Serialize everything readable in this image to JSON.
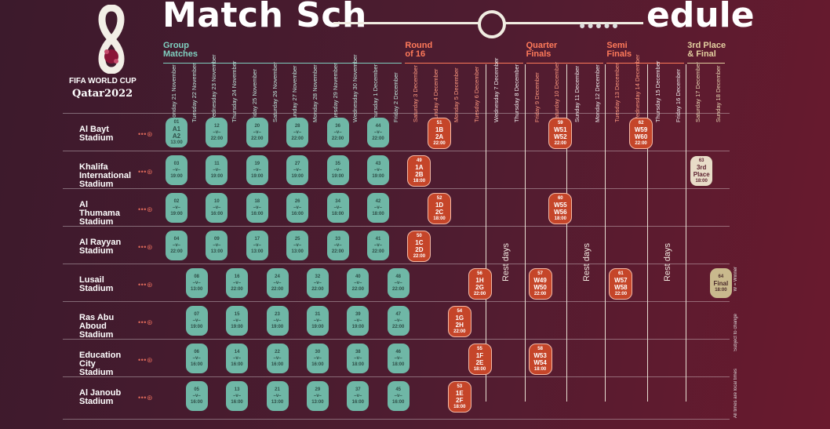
{
  "title": {
    "main": "Match Sch",
    "end": "edule",
    "dots": "●●●●●"
  },
  "logo": {
    "line1": "FIFA WORLD CUP",
    "line2": "Qatar2022"
  },
  "phases": [
    {
      "label": "Group\nMatches",
      "color": "#7fd0c0"
    },
    {
      "label": "Round\nof 16",
      "color": "#ff7a5a"
    },
    {
      "label": "Quarter\nFinals",
      "color": "#ff7a5a"
    },
    {
      "label": "Semi\nFinals",
      "color": "#ff7a5a"
    },
    {
      "label": "3rd Place\n& Final",
      "color": "#e3cfa0"
    }
  ],
  "days": [
    "Monday 21 November",
    "Tuesday 22 November",
    "Wednesday 23 November",
    "Thursday 24 November",
    "Friday 25 November",
    "Saturday 26 November",
    "Sunday 27 November",
    "Monday 28 November",
    "Tuesday 29 November",
    "Wednesday 30 November",
    "Thursday 1 December",
    "Friday 2 December",
    "Saturday 3 December",
    "Sunday 4 December",
    "Monday 5 December",
    "Tuesday 6 December",
    "Wednesday 7 December",
    "Thursday 8 December",
    "Friday 9 December",
    "Saturday 10 December",
    "Sunday 11 December",
    "Monday 12 December",
    "Tuesday 13 December",
    "Wednesday 14 December",
    "Thursday 15 December",
    "Friday 16 December",
    "Saturday 17 December",
    "Sunday 18 December"
  ],
  "stadiums": [
    "Al Bayt\nStadium",
    "Khalifa\nInternational\nStadium",
    "Al\nThumama\nStadium",
    "Al Rayyan\nStadium",
    "Lusail\nStadium",
    "Ras Abu\nAboud\nStadium",
    "Education\nCity\nStadium",
    "Al Janoub\nStadium"
  ],
  "connector": "• • • ⊛",
  "rest_label": "Rest days",
  "side_notes": [
    "W = Winner",
    "Subject to change",
    "All times are local times"
  ],
  "matches": [
    {
      "row": 0,
      "col": 0,
      "n": "01",
      "a": "A1",
      "b": "A2",
      "t": "13:00",
      "type": "g"
    },
    {
      "row": 0,
      "col": 2,
      "n": "12",
      "a": "",
      "b": "",
      "t": "22:00",
      "type": "g"
    },
    {
      "row": 0,
      "col": 4,
      "n": "20",
      "a": "",
      "b": "",
      "t": "22:00",
      "type": "g"
    },
    {
      "row": 0,
      "col": 6,
      "n": "28",
      "a": "",
      "b": "",
      "t": "22:00",
      "type": "g"
    },
    {
      "row": 0,
      "col": 8,
      "n": "36",
      "a": "",
      "b": "",
      "t": "22:00",
      "type": "g"
    },
    {
      "row": 0,
      "col": 10,
      "n": "44",
      "a": "",
      "b": "",
      "t": "22:00",
      "type": "g"
    },
    {
      "row": 0,
      "col": 13,
      "n": "51",
      "a": "1B",
      "b": "2A",
      "t": "22:00",
      "type": "k"
    },
    {
      "row": 0,
      "col": 19,
      "n": "59",
      "a": "W51",
      "b": "W52",
      "t": "22:00",
      "type": "k"
    },
    {
      "row": 0,
      "col": 23,
      "n": "62",
      "a": "W59",
      "b": "W60",
      "t": "22:00",
      "type": "k"
    },
    {
      "row": 1,
      "col": 0,
      "n": "03",
      "a": "",
      "b": "",
      "t": "19:00",
      "type": "g"
    },
    {
      "row": 1,
      "col": 2,
      "n": "11",
      "a": "",
      "b": "",
      "t": "19:00",
      "type": "g"
    },
    {
      "row": 1,
      "col": 4,
      "n": "19",
      "a": "",
      "b": "",
      "t": "19:00",
      "type": "g"
    },
    {
      "row": 1,
      "col": 6,
      "n": "27",
      "a": "",
      "b": "",
      "t": "19:00",
      "type": "g"
    },
    {
      "row": 1,
      "col": 8,
      "n": "35",
      "a": "",
      "b": "",
      "t": "19:00",
      "type": "g"
    },
    {
      "row": 1,
      "col": 10,
      "n": "43",
      "a": "",
      "b": "",
      "t": "19:00",
      "type": "g"
    },
    {
      "row": 1,
      "col": 12,
      "n": "49",
      "a": "1A",
      "b": "2B",
      "t": "18:00",
      "type": "k"
    },
    {
      "row": 1,
      "col": 26,
      "n": "63",
      "a": "3rd",
      "b": "Place",
      "t": "18:00",
      "type": "t"
    },
    {
      "row": 2,
      "col": 0,
      "n": "02",
      "a": "",
      "b": "",
      "t": "19:00",
      "type": "g"
    },
    {
      "row": 2,
      "col": 2,
      "n": "10",
      "a": "",
      "b": "",
      "t": "16:00",
      "type": "g"
    },
    {
      "row": 2,
      "col": 4,
      "n": "18",
      "a": "",
      "b": "",
      "t": "16:00",
      "type": "g"
    },
    {
      "row": 2,
      "col": 6,
      "n": "26",
      "a": "",
      "b": "",
      "t": "16:00",
      "type": "g"
    },
    {
      "row": 2,
      "col": 8,
      "n": "34",
      "a": "",
      "b": "",
      "t": "18:00",
      "type": "g"
    },
    {
      "row": 2,
      "col": 10,
      "n": "42",
      "a": "",
      "b": "",
      "t": "18:00",
      "type": "g"
    },
    {
      "row": 2,
      "col": 13,
      "n": "52",
      "a": "1D",
      "b": "2C",
      "t": "18:00",
      "type": "k"
    },
    {
      "row": 2,
      "col": 19,
      "n": "60",
      "a": "W55",
      "b": "W56",
      "t": "18:00",
      "type": "k"
    },
    {
      "row": 3,
      "col": 0,
      "n": "04",
      "a": "",
      "b": "",
      "t": "22:00",
      "type": "g"
    },
    {
      "row": 3,
      "col": 2,
      "n": "09",
      "a": "",
      "b": "",
      "t": "13:00",
      "type": "g"
    },
    {
      "row": 3,
      "col": 4,
      "n": "17",
      "a": "",
      "b": "",
      "t": "13:00",
      "type": "g"
    },
    {
      "row": 3,
      "col": 6,
      "n": "25",
      "a": "",
      "b": "",
      "t": "13:00",
      "type": "g"
    },
    {
      "row": 3,
      "col": 8,
      "n": "33",
      "a": "",
      "b": "",
      "t": "22:00",
      "type": "g"
    },
    {
      "row": 3,
      "col": 10,
      "n": "41",
      "a": "",
      "b": "",
      "t": "22:00",
      "type": "g"
    },
    {
      "row": 3,
      "col": 12,
      "n": "50",
      "a": "1C",
      "b": "2D",
      "t": "22:00",
      "type": "k"
    },
    {
      "row": 4,
      "col": 1,
      "n": "08",
      "a": "",
      "b": "",
      "t": "13:00",
      "type": "g"
    },
    {
      "row": 4,
      "col": 3,
      "n": "16",
      "a": "",
      "b": "",
      "t": "22:00",
      "type": "g"
    },
    {
      "row": 4,
      "col": 5,
      "n": "24",
      "a": "",
      "b": "",
      "t": "22:00",
      "type": "g"
    },
    {
      "row": 4,
      "col": 7,
      "n": "32",
      "a": "",
      "b": "",
      "t": "22:00",
      "type": "g"
    },
    {
      "row": 4,
      "col": 9,
      "n": "40",
      "a": "",
      "b": "",
      "t": "22:00",
      "type": "g"
    },
    {
      "row": 4,
      "col": 11,
      "n": "48",
      "a": "",
      "b": "",
      "t": "22:00",
      "type": "g"
    },
    {
      "row": 4,
      "col": 15,
      "n": "56",
      "a": "1H",
      "b": "2G",
      "t": "22:00",
      "type": "k"
    },
    {
      "row": 4,
      "col": 18,
      "n": "57",
      "a": "W49",
      "b": "W50",
      "t": "22:00",
      "type": "k"
    },
    {
      "row": 4,
      "col": 22,
      "n": "61",
      "a": "W57",
      "b": "W58",
      "t": "22:00",
      "type": "k"
    },
    {
      "row": 4,
      "col": 27,
      "n": "64",
      "a": "Final",
      "b": "",
      "t": "18:00",
      "type": "f"
    },
    {
      "row": 5,
      "col": 1,
      "n": "07",
      "a": "",
      "b": "",
      "t": "19:00",
      "type": "g"
    },
    {
      "row": 5,
      "col": 3,
      "n": "15",
      "a": "",
      "b": "",
      "t": "19:00",
      "type": "g"
    },
    {
      "row": 5,
      "col": 5,
      "n": "23",
      "a": "",
      "b": "",
      "t": "19:00",
      "type": "g"
    },
    {
      "row": 5,
      "col": 7,
      "n": "31",
      "a": "",
      "b": "",
      "t": "19:00",
      "type": "g"
    },
    {
      "row": 5,
      "col": 9,
      "n": "39",
      "a": "",
      "b": "",
      "t": "19:00",
      "type": "g"
    },
    {
      "row": 5,
      "col": 11,
      "n": "47",
      "a": "",
      "b": "",
      "t": "22:00",
      "type": "g"
    },
    {
      "row": 5,
      "col": 14,
      "n": "54",
      "a": "1G",
      "b": "2H",
      "t": "22:00",
      "type": "k"
    },
    {
      "row": 6,
      "col": 1,
      "n": "06",
      "a": "",
      "b": "",
      "t": "16:00",
      "type": "g"
    },
    {
      "row": 6,
      "col": 3,
      "n": "14",
      "a": "",
      "b": "",
      "t": "16:00",
      "type": "g"
    },
    {
      "row": 6,
      "col": 5,
      "n": "22",
      "a": "",
      "b": "",
      "t": "16:00",
      "type": "g"
    },
    {
      "row": 6,
      "col": 7,
      "n": "30",
      "a": "",
      "b": "",
      "t": "16:00",
      "type": "g"
    },
    {
      "row": 6,
      "col": 9,
      "n": "38",
      "a": "",
      "b": "",
      "t": "18:00",
      "type": "g"
    },
    {
      "row": 6,
      "col": 11,
      "n": "46",
      "a": "",
      "b": "",
      "t": "18:00",
      "type": "g"
    },
    {
      "row": 6,
      "col": 15,
      "n": "55",
      "a": "1F",
      "b": "2E",
      "t": "18:00",
      "type": "k"
    },
    {
      "row": 6,
      "col": 18,
      "n": "58",
      "a": "W53",
      "b": "W54",
      "t": "18:00",
      "type": "k"
    },
    {
      "row": 7,
      "col": 1,
      "n": "05",
      "a": "",
      "b": "",
      "t": "16:00",
      "type": "g"
    },
    {
      "row": 7,
      "col": 3,
      "n": "13",
      "a": "",
      "b": "",
      "t": "16:00",
      "type": "g"
    },
    {
      "row": 7,
      "col": 5,
      "n": "21",
      "a": "",
      "b": "",
      "t": "13:00",
      "type": "g"
    },
    {
      "row": 7,
      "col": 7,
      "n": "29",
      "a": "",
      "b": "",
      "t": "13:00",
      "type": "g"
    },
    {
      "row": 7,
      "col": 9,
      "n": "37",
      "a": "",
      "b": "",
      "t": "16:00",
      "type": "g"
    },
    {
      "row": 7,
      "col": 11,
      "n": "45",
      "a": "",
      "b": "",
      "t": "16:00",
      "type": "g"
    },
    {
      "row": 7,
      "col": 14,
      "n": "53",
      "a": "1E",
      "b": "2F",
      "t": "18:00",
      "type": "k"
    }
  ]
}
